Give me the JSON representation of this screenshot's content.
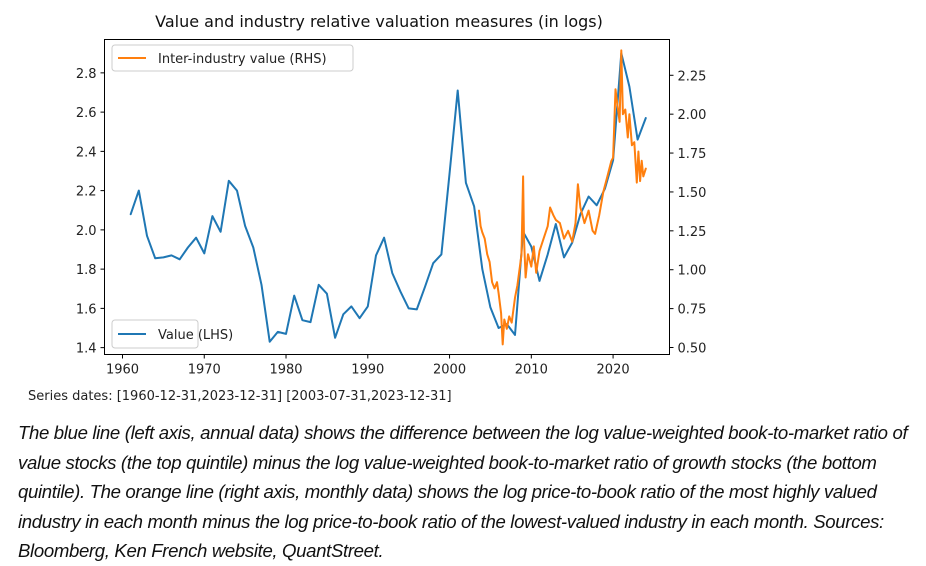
{
  "chart_data": {
    "type": "line",
    "title": "Value and industry relative valuation measures (in logs)",
    "xlabel": "",
    "ylabel_left": "",
    "ylabel_right": "",
    "xlim": [
      1957.8,
      2026.9
    ],
    "ylim_left": [
      1.365,
      2.97
    ],
    "ylim_right": [
      0.455,
      2.48
    ],
    "x_ticks": [
      1960,
      1970,
      1980,
      1990,
      2000,
      2010,
      2020
    ],
    "x_tick_labels": [
      "1960",
      "1970",
      "1980",
      "1990",
      "2000",
      "2010",
      "2020"
    ],
    "y_left_ticks": [
      1.4,
      1.6,
      1.8,
      2.0,
      2.2,
      2.4,
      2.6,
      2.8
    ],
    "y_left_tick_labels": [
      "1.4",
      "1.6",
      "1.8",
      "2.0",
      "2.2",
      "2.4",
      "2.6",
      "2.8"
    ],
    "y_right_ticks": [
      0.5,
      0.75,
      1.0,
      1.25,
      1.5,
      1.75,
      2.0,
      2.25
    ],
    "y_right_tick_labels": [
      "0.50",
      "0.75",
      "1.00",
      "1.25",
      "1.50",
      "1.75",
      "2.00",
      "2.25"
    ],
    "grid": false,
    "series": [
      {
        "name": "Value (LHS)",
        "axis": "left",
        "color": "#1f77b4",
        "legend_position": "lower-left",
        "x": [
          1961,
          1962,
          1963,
          1964,
          1965,
          1966,
          1967,
          1968,
          1969,
          1970,
          1971,
          1972,
          1973,
          1974,
          1975,
          1976,
          1977,
          1978,
          1979,
          1980,
          1981,
          1982,
          1983,
          1984,
          1985,
          1986,
          1987,
          1988,
          1989,
          1990,
          1991,
          1992,
          1993,
          1994,
          1995,
          1996,
          1997,
          1998,
          1999,
          2000,
          2001,
          2002,
          2003,
          2004,
          2005,
          2006,
          2007,
          2008,
          2009,
          2010,
          2011,
          2012,
          2013,
          2014,
          2015,
          2016,
          2017,
          2018,
          2019,
          2020,
          2021,
          2022,
          2023,
          2024
        ],
        "values": [
          2.08,
          2.2,
          1.97,
          1.855,
          1.86,
          1.87,
          1.85,
          1.91,
          1.96,
          1.88,
          2.07,
          1.99,
          2.25,
          2.2,
          2.02,
          1.91,
          1.72,
          1.43,
          1.48,
          1.47,
          1.665,
          1.54,
          1.53,
          1.72,
          1.675,
          1.45,
          1.57,
          1.61,
          1.55,
          1.61,
          1.87,
          1.96,
          1.78,
          1.685,
          1.6,
          1.595,
          1.71,
          1.83,
          1.875,
          2.29,
          2.71,
          2.24,
          2.12,
          1.8,
          1.605,
          1.5,
          1.52,
          1.465,
          1.99,
          1.915,
          1.74,
          1.875,
          2.03,
          1.86,
          1.935,
          2.08,
          2.17,
          2.125,
          2.21,
          2.355,
          2.9,
          2.73,
          2.46,
          2.57
        ]
      },
      {
        "name": "Inter-industry value (RHS)",
        "axis": "right",
        "color": "#ff7f0e",
        "legend_position": "upper-left",
        "x": [
          2003.6,
          2003.8,
          2004.0,
          2004.3,
          2004.6,
          2004.9,
          2005.2,
          2005.5,
          2005.8,
          2006.0,
          2006.3,
          2006.5,
          2006.7,
          2007.0,
          2007.3,
          2007.6,
          2008.0,
          2008.3,
          2008.6,
          2008.8,
          2009.0,
          2009.1,
          2009.3,
          2009.6,
          2010.0,
          2010.3,
          2010.6,
          2011.0,
          2011.5,
          2012.0,
          2012.3,
          2012.7,
          2013.0,
          2013.5,
          2014.0,
          2014.5,
          2015.0,
          2015.4,
          2015.7,
          2016.0,
          2016.5,
          2017.0,
          2017.5,
          2017.8,
          2018.3,
          2018.8,
          2019.3,
          2019.8,
          2020.0,
          2020.3,
          2020.5,
          2020.8,
          2021.0,
          2021.2,
          2021.5,
          2021.8,
          2022.0,
          2022.3,
          2022.6,
          2022.9,
          2023.1,
          2023.3,
          2023.5,
          2023.7,
          2024.0
        ],
        "values": [
          1.38,
          1.28,
          1.24,
          1.2,
          1.1,
          1.05,
          0.92,
          0.88,
          0.92,
          0.85,
          0.72,
          0.52,
          0.68,
          0.62,
          0.7,
          0.66,
          0.82,
          0.9,
          1.02,
          1.1,
          1.6,
          1.2,
          0.95,
          1.1,
          1.02,
          1.15,
          0.98,
          1.12,
          1.2,
          1.28,
          1.4,
          1.35,
          1.32,
          1.3,
          1.2,
          1.25,
          1.18,
          1.3,
          1.55,
          1.4,
          1.3,
          1.38,
          1.25,
          1.23,
          1.35,
          1.5,
          1.6,
          1.7,
          1.72,
          2.16,
          2.07,
          1.95,
          2.41,
          2.0,
          2.03,
          1.85,
          2.0,
          1.8,
          1.82,
          1.56,
          1.76,
          1.57,
          1.7,
          1.6,
          1.65
        ]
      }
    ],
    "annotations": []
  },
  "footer": {
    "series_dates": "Series dates: [1960-12-31,2023-12-31] [2003-07-31,2023-12-31]",
    "caption": "The blue line (left axis, annual data) shows the difference between the log value-weighted book-to-market ratio of value stocks (the top quintile) minus the log value-weighted book-to-market ratio of growth stocks (the bottom quintile). The orange line (right axis, monthly data) shows the log price-to-book ratio of the most highly valued industry in each month minus the log price-to-book ratio of the lowest-valued industry in each month. Sources: Bloomberg, Ken French website, QuantStreet."
  }
}
